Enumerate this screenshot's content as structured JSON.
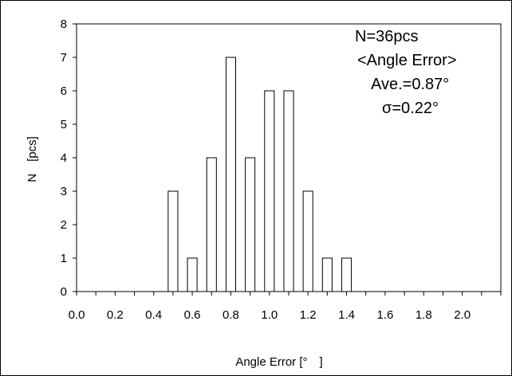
{
  "chart_data": {
    "type": "bar",
    "title": "",
    "xlabel": "Angle Error [°　]",
    "ylabel": "N　[pcs]",
    "xlim": [
      0,
      2.2
    ],
    "ylim": [
      0,
      8
    ],
    "x_ticks": [
      "0.0",
      "0.2",
      "0.4",
      "0.6",
      "0.8",
      "1.0",
      "1.2",
      "1.4",
      "1.6",
      "1.8",
      "2.0"
    ],
    "y_ticks": [
      "0",
      "1",
      "2",
      "3",
      "4",
      "5",
      "6",
      "7",
      "8"
    ],
    "x": [
      0.5,
      0.6,
      0.7,
      0.8,
      0.9,
      1.0,
      1.1,
      1.2,
      1.3,
      1.4
    ],
    "values": [
      3,
      1,
      4,
      7,
      4,
      6,
      6,
      3,
      1,
      1
    ],
    "grid": false,
    "annotations": [
      "N=36pcs",
      "<Angle Error>",
      "Ave.=0.87°",
      "σ=0.22°"
    ]
  },
  "colors": {
    "bar_fill": "#ffffff",
    "bar_stroke": "#000000",
    "axis": "#000000"
  }
}
